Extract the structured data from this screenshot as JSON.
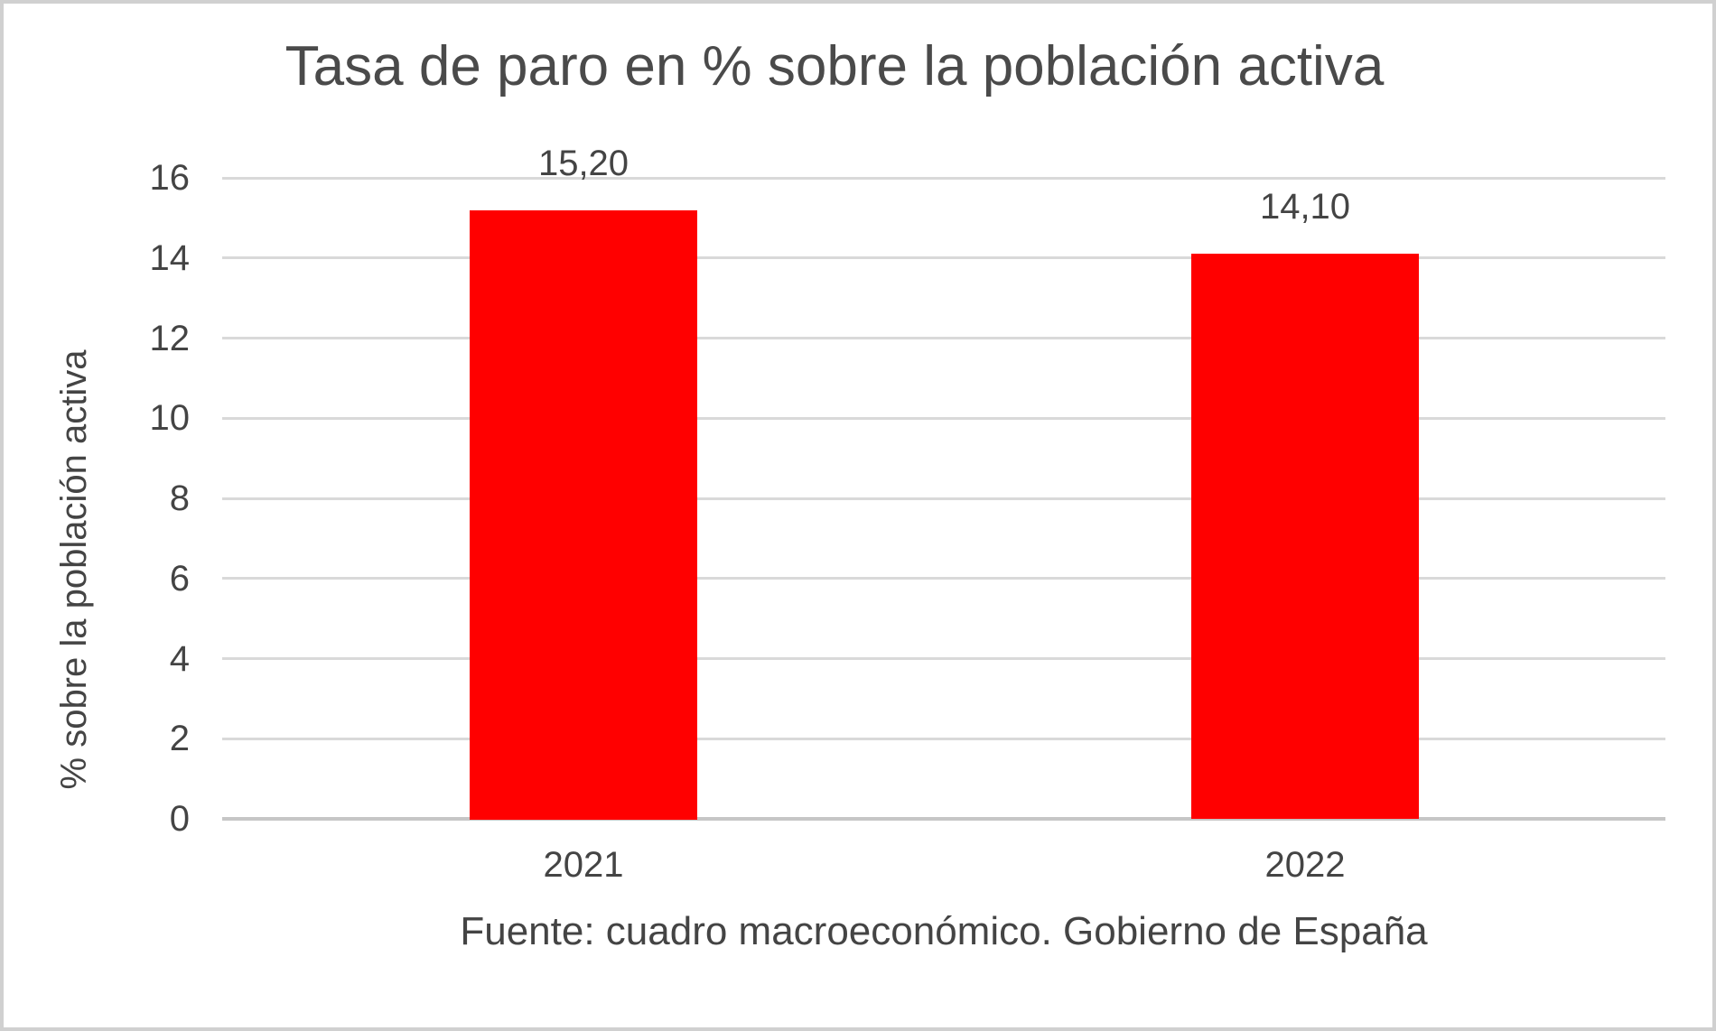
{
  "chart_data": {
    "type": "bar",
    "title": "Tasa de paro en % sobre la población activa",
    "categories": [
      "2021",
      "2022"
    ],
    "values": [
      15.2,
      14.1
    ],
    "data_labels": [
      "15,20",
      "14,10"
    ],
    "xlabel": "",
    "ylabel": "% sobre la población activa",
    "ylim": [
      0,
      16
    ],
    "ytick_step": 2,
    "ytick_labels": [
      "0",
      "2",
      "4",
      "6",
      "8",
      "10",
      "12",
      "14",
      "16"
    ],
    "grid": "horizontal gridlines on",
    "legend": "none",
    "caption": "Fuente: cuadro macroeconómico. Gobierno de España"
  },
  "colors": {
    "bar_fill": "#ff0000",
    "gridline": "#d9d9d9",
    "axis_line": "#c6c6c6",
    "text": "#444444",
    "title_text": "#4a4a4a",
    "frame_border": "#d0d0d0",
    "background": "#ffffff"
  }
}
